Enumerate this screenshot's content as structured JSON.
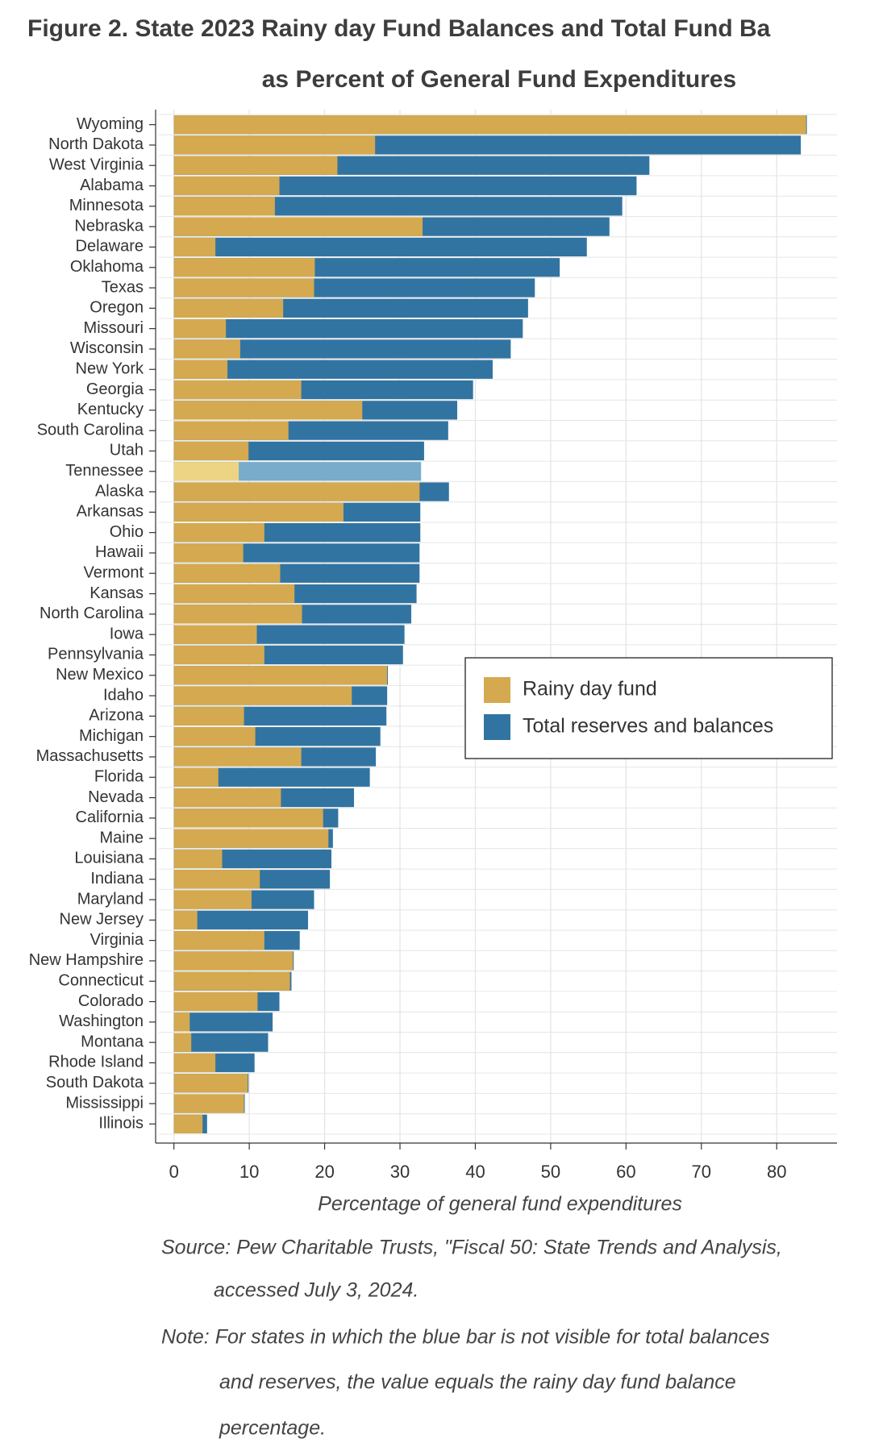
{
  "chart_data": {
    "type": "overlap_barh",
    "title": "Figure 2. State 2023 Rainy day Fund Balances and Total Fund Ba",
    "subtitle": "as Percent of General Fund Expenditures",
    "x_label": "Percentage of general fund expenditures",
    "source_lines": [
      "Source: Pew Charitable Trusts, \"Fiscal 50: State Trends and Analysis,",
      "accessed July 3, 2024."
    ],
    "note_lines": [
      "Note: For states in which the blue bar is not visible for total balances",
      "and reserves, the value equals the rainy day fund balance",
      "percentage."
    ],
    "categories": [
      "Wyoming",
      "North Dakota",
      "West Virginia",
      "Alabama",
      "Minnesota",
      "Nebraska",
      "Delaware",
      "Oklahoma",
      "Texas",
      "Oregon",
      "Missouri",
      "Wisconsin",
      "New York",
      "Georgia",
      "Kentucky",
      "South Carolina",
      "Utah",
      "Tennessee",
      "Alaska",
      "Arkansas",
      "Ohio",
      "Hawaii",
      "Vermont",
      "Kansas",
      "North Carolina",
      "Iowa",
      "Pennsylvania",
      "New Mexico",
      "Idaho",
      "Arizona",
      "Michigan",
      "Massachusetts",
      "Florida",
      "Nevada",
      "California",
      "Maine",
      "Louisiana",
      "Indiana",
      "Maryland",
      "New Jersey",
      "Virginia",
      "New Hampshire",
      "Connecticut",
      "Colorado",
      "Washington",
      "Montana",
      "Rhode Island",
      "South Dakota",
      "Mississippi",
      "Illinois"
    ],
    "series": [
      {
        "name": "Rainy day fund",
        "color": "#d4a94f",
        "highlight_color": "#edd384",
        "values": [
          83.9,
          26.7,
          21.7,
          14.0,
          13.4,
          33.0,
          5.5,
          18.7,
          18.6,
          14.5,
          6.9,
          8.8,
          7.1,
          16.9,
          25.0,
          15.2,
          9.9,
          8.6,
          32.6,
          22.5,
          12.0,
          9.2,
          14.1,
          16.0,
          17.0,
          11.0,
          12.0,
          28.3,
          23.6,
          9.3,
          10.8,
          16.9,
          5.9,
          14.2,
          19.8,
          20.5,
          6.4,
          11.4,
          10.3,
          3.1,
          12.0,
          15.8,
          15.4,
          11.1,
          2.1,
          2.3,
          5.5,
          9.8,
          9.3,
          3.8
        ]
      },
      {
        "name": "Total reserves and balances",
        "color": "#3274a1",
        "highlight_color": "#78acca",
        "values": [
          84.0,
          83.2,
          63.1,
          61.4,
          59.5,
          57.8,
          54.8,
          51.2,
          47.9,
          47.0,
          46.3,
          44.7,
          42.3,
          39.7,
          37.6,
          36.4,
          33.2,
          32.8,
          36.5,
          32.7,
          32.7,
          32.6,
          32.6,
          32.2,
          31.5,
          30.6,
          30.4,
          28.4,
          28.3,
          28.2,
          27.4,
          26.8,
          26.0,
          23.9,
          21.8,
          21.1,
          20.9,
          20.7,
          18.6,
          17.8,
          16.7,
          15.9,
          15.6,
          14.0,
          13.1,
          12.5,
          10.7,
          9.9,
          9.4,
          4.4
        ]
      }
    ],
    "highlighted_category": "Tennessee",
    "xlim": [
      -2,
      88
    ],
    "xticks": [
      0,
      10,
      20,
      30,
      40,
      50,
      60,
      70,
      80
    ],
    "grid": true
  }
}
